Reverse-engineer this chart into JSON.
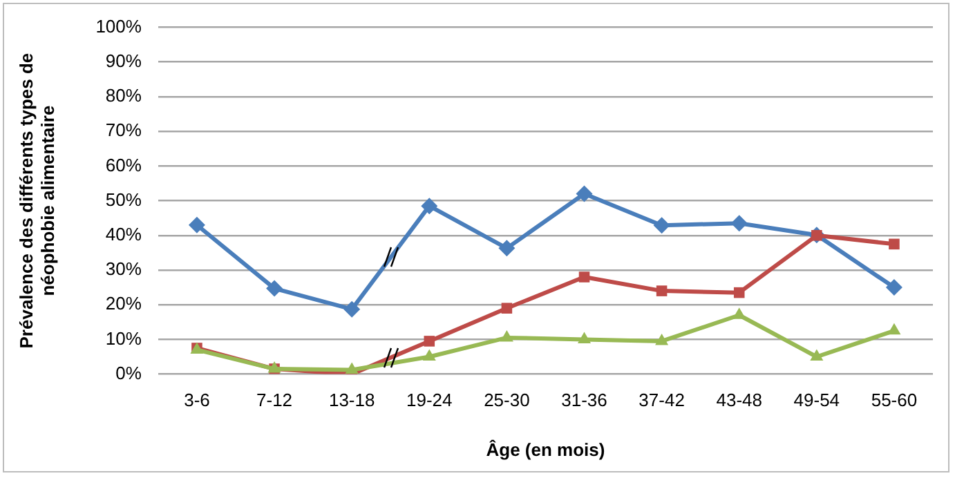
{
  "chart_data": {
    "type": "line",
    "xlabel": "Âge (en mois)",
    "ylabel": "Prévalence des différents types de néophobie alimentaire",
    "categories": [
      "3-6",
      "7-12",
      "13-18",
      "19-24",
      "25-30",
      "31-36",
      "37-42",
      "43-48",
      "49-54",
      "55-60"
    ],
    "series": [
      {
        "color": "#4a7ebb",
        "marker": "diamond",
        "values": [
          43,
          24.7,
          18.7,
          48.5,
          36.3,
          52,
          42.9,
          43.5,
          40.1,
          25
        ]
      },
      {
        "color": "#be4b48",
        "marker": "square",
        "values": [
          7.5,
          1.5,
          0,
          9.5,
          19,
          28,
          24,
          23.5,
          40,
          37.5
        ]
      },
      {
        "color": "#98b954",
        "marker": "triangle",
        "values": [
          7,
          1.5,
          1.2,
          5,
          10.5,
          10,
          9.5,
          17,
          5,
          12.5
        ]
      }
    ],
    "ylim": [
      0,
      100
    ],
    "yticks": [
      {
        "value": 0,
        "label": "0%"
      },
      {
        "value": 10,
        "label": "10%"
      },
      {
        "value": 20,
        "label": "20%"
      },
      {
        "value": 30,
        "label": "30%"
      },
      {
        "value": 40,
        "label": "40%"
      },
      {
        "value": 50,
        "label": "50%"
      },
      {
        "value": 60,
        "label": "60%"
      },
      {
        "value": 70,
        "label": "70%"
      },
      {
        "value": 80,
        "label": "80%"
      },
      {
        "value": 90,
        "label": "90%"
      },
      {
        "value": 100,
        "label": "100%"
      }
    ],
    "grid": "y",
    "legend": false
  }
}
